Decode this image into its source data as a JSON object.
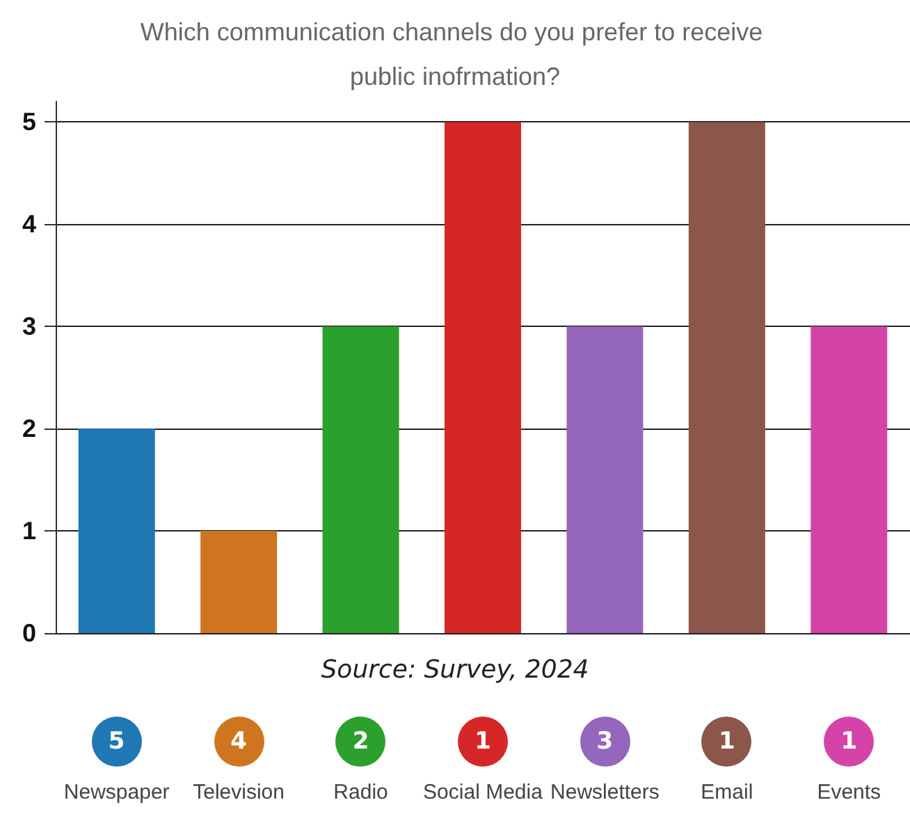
{
  "chart_data": {
    "type": "bar",
    "title": "Which communication channels do you prefer to receive public inofrmation?",
    "categories": [
      "Newspaper",
      "Television",
      "Radio",
      "Social Media",
      "Newsletters",
      "Email",
      "Events"
    ],
    "values": [
      2,
      1,
      3,
      5,
      3,
      5,
      3
    ],
    "colors": [
      "#1f77b4",
      "#cf7520",
      "#2ca02c",
      "#d62728",
      "#9467bd",
      "#8c564b",
      "#d444a8"
    ],
    "ylim": [
      0,
      5.2
    ],
    "yticks": [
      0,
      1,
      2,
      3,
      4,
      5
    ],
    "grid": "y",
    "annotations": [
      "Source: Survey, 2024",
      "5",
      "4",
      "2",
      "1",
      "3",
      "1",
      "1"
    ]
  }
}
